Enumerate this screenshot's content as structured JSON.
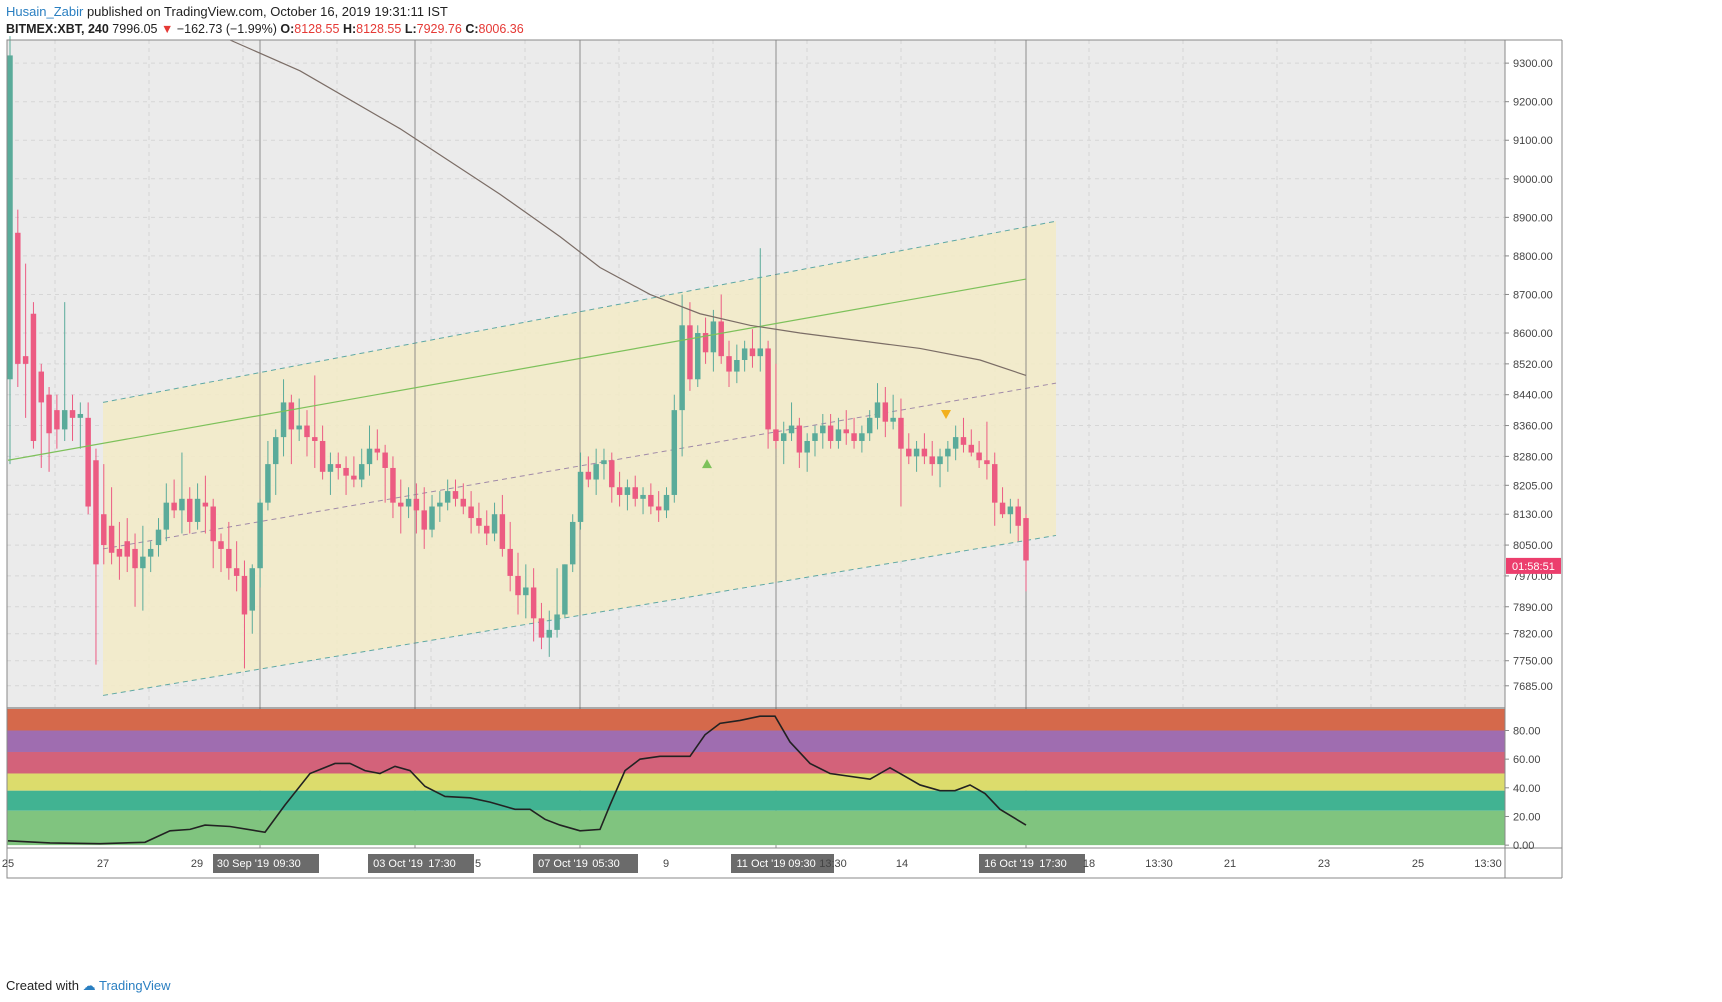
{
  "header": {
    "author": "Husain_Zabir",
    "published": "published on TradingView.com, October 16, 2019 19:31:11 IST",
    "symbol": "BITMEX:XBT, 240",
    "last": "7996.05",
    "change": "−162.73 (−1.99%)",
    "o_label": "O:",
    "o_value": "8128.55",
    "h_label": "H:",
    "h_value": "8128.55",
    "l_label": "L:",
    "l_value": "7929.76",
    "c_label": "C:",
    "c_value": "8006.36"
  },
  "footer": {
    "created_with": "Created with",
    "brand": "TradingView"
  },
  "colors": {
    "up": "#5aab9a",
    "down": "#ec5b82",
    "channel_fill": "#f3ebc7",
    "ma": "#7b6d66",
    "green_line": "#7dc15a"
  },
  "chart_data": [
    {
      "type": "candlestick",
      "title": "BITMEX:XBT, 240",
      "ylim": [
        7630,
        9360
      ],
      "y_ticks": [
        "9300.00",
        "9200.00",
        "9100.00",
        "9000.00",
        "8900.00",
        "8800.00",
        "8700.00",
        "8600.00",
        "8520.00",
        "8440.00",
        "8360.00",
        "8280.00",
        "8205.00",
        "8130.00",
        "8050.00",
        "7970.00",
        "7890.00",
        "7820.00",
        "7750.00",
        "7685.00"
      ],
      "current_price_label": "01:58:51",
      "x_ticks": [
        "25",
        "27",
        "29",
        "30 Sep '19",
        "09:30",
        "03 Oct '19",
        "17:30",
        "5",
        "07 Oct '19",
        "05:30",
        "9",
        "11 Oct '19",
        "09:30",
        "13:30",
        "14",
        "16 Oct '19",
        "17:30",
        "18",
        "13:30",
        "21",
        "23",
        "25",
        "13:30"
      ],
      "candles": [
        {
          "o": 8480,
          "h": 9370,
          "l": 8260,
          "c": 9320
        },
        {
          "o": 8860,
          "h": 8920,
          "l": 8460,
          "c": 8520
        },
        {
          "o": 8540,
          "h": 8780,
          "l": 8380,
          "c": 8520
        },
        {
          "o": 8650,
          "h": 8680,
          "l": 8300,
          "c": 8320
        },
        {
          "o": 8500,
          "h": 8520,
          "l": 8250,
          "c": 8420
        },
        {
          "o": 8440,
          "h": 8460,
          "l": 8240,
          "c": 8340
        },
        {
          "o": 8400,
          "h": 8440,
          "l": 8300,
          "c": 8350
        },
        {
          "o": 8350,
          "h": 8680,
          "l": 8320,
          "c": 8400
        },
        {
          "o": 8400,
          "h": 8440,
          "l": 8320,
          "c": 8380
        },
        {
          "o": 8380,
          "h": 8420,
          "l": 8300,
          "c": 8390
        },
        {
          "o": 8380,
          "h": 8420,
          "l": 8130,
          "c": 8150
        },
        {
          "o": 8270,
          "h": 8300,
          "l": 7740,
          "c": 8000
        },
        {
          "o": 8130,
          "h": 8260,
          "l": 8000,
          "c": 8050
        },
        {
          "o": 8100,
          "h": 8200,
          "l": 8000,
          "c": 8030
        },
        {
          "o": 8040,
          "h": 8110,
          "l": 7960,
          "c": 8020
        },
        {
          "o": 8060,
          "h": 8120,
          "l": 7980,
          "c": 8020
        },
        {
          "o": 8040,
          "h": 8080,
          "l": 7890,
          "c": 7990
        },
        {
          "o": 7990,
          "h": 8100,
          "l": 7880,
          "c": 8020
        },
        {
          "o": 8020,
          "h": 8060,
          "l": 7980,
          "c": 8040
        },
        {
          "o": 8050,
          "h": 8120,
          "l": 8020,
          "c": 8090
        },
        {
          "o": 8090,
          "h": 8210,
          "l": 8060,
          "c": 8160
        },
        {
          "o": 8160,
          "h": 8220,
          "l": 8120,
          "c": 8140
        },
        {
          "o": 8140,
          "h": 8290,
          "l": 8080,
          "c": 8170
        },
        {
          "o": 8170,
          "h": 8200,
          "l": 8080,
          "c": 8110
        },
        {
          "o": 8110,
          "h": 8210,
          "l": 8090,
          "c": 8170
        },
        {
          "o": 8160,
          "h": 8230,
          "l": 8080,
          "c": 8150
        },
        {
          "o": 8150,
          "h": 8170,
          "l": 7990,
          "c": 8060
        },
        {
          "o": 8060,
          "h": 8080,
          "l": 7980,
          "c": 8040
        },
        {
          "o": 8040,
          "h": 8110,
          "l": 7960,
          "c": 7990
        },
        {
          "o": 7990,
          "h": 8060,
          "l": 7930,
          "c": 7970
        },
        {
          "o": 7970,
          "h": 8010,
          "l": 7730,
          "c": 7870
        },
        {
          "o": 7880,
          "h": 8000,
          "l": 7820,
          "c": 7990
        },
        {
          "o": 7990,
          "h": 8170,
          "l": 7940,
          "c": 8160
        },
        {
          "o": 8160,
          "h": 8320,
          "l": 8140,
          "c": 8260
        },
        {
          "o": 8260,
          "h": 8350,
          "l": 8180,
          "c": 8330
        },
        {
          "o": 8330,
          "h": 8480,
          "l": 8280,
          "c": 8420
        },
        {
          "o": 8420,
          "h": 8440,
          "l": 8260,
          "c": 8350
        },
        {
          "o": 8350,
          "h": 8430,
          "l": 8320,
          "c": 8360
        },
        {
          "o": 8360,
          "h": 8400,
          "l": 8280,
          "c": 8330
        },
        {
          "o": 8330,
          "h": 8490,
          "l": 8250,
          "c": 8320
        },
        {
          "o": 8320,
          "h": 8360,
          "l": 8220,
          "c": 8240
        },
        {
          "o": 8240,
          "h": 8290,
          "l": 8180,
          "c": 8260
        },
        {
          "o": 8260,
          "h": 8290,
          "l": 8220,
          "c": 8250
        },
        {
          "o": 8250,
          "h": 8280,
          "l": 8180,
          "c": 8230
        },
        {
          "o": 8230,
          "h": 8280,
          "l": 8200,
          "c": 8220
        },
        {
          "o": 8220,
          "h": 8300,
          "l": 8200,
          "c": 8260
        },
        {
          "o": 8260,
          "h": 8360,
          "l": 8230,
          "c": 8300
        },
        {
          "o": 8300,
          "h": 8350,
          "l": 8270,
          "c": 8290
        },
        {
          "o": 8290,
          "h": 8310,
          "l": 8160,
          "c": 8250
        },
        {
          "o": 8250,
          "h": 8280,
          "l": 8120,
          "c": 8160
        },
        {
          "o": 8160,
          "h": 8220,
          "l": 8080,
          "c": 8150
        },
        {
          "o": 8150,
          "h": 8200,
          "l": 8120,
          "c": 8170
        },
        {
          "o": 8170,
          "h": 8210,
          "l": 8080,
          "c": 8140
        },
        {
          "o": 8140,
          "h": 8200,
          "l": 8040,
          "c": 8090
        },
        {
          "o": 8090,
          "h": 8180,
          "l": 8070,
          "c": 8150
        },
        {
          "o": 8150,
          "h": 8190,
          "l": 8110,
          "c": 8160
        },
        {
          "o": 8160,
          "h": 8220,
          "l": 8140,
          "c": 8190
        },
        {
          "o": 8190,
          "h": 8220,
          "l": 8150,
          "c": 8170
        },
        {
          "o": 8170,
          "h": 8210,
          "l": 8130,
          "c": 8150
        },
        {
          "o": 8150,
          "h": 8190,
          "l": 8080,
          "c": 8120
        },
        {
          "o": 8120,
          "h": 8160,
          "l": 8080,
          "c": 8100
        },
        {
          "o": 8100,
          "h": 8140,
          "l": 8050,
          "c": 8080
        },
        {
          "o": 8080,
          "h": 8160,
          "l": 8060,
          "c": 8130
        },
        {
          "o": 8130,
          "h": 8180,
          "l": 8020,
          "c": 8040
        },
        {
          "o": 8040,
          "h": 8110,
          "l": 7930,
          "c": 7970
        },
        {
          "o": 7970,
          "h": 8030,
          "l": 7870,
          "c": 7920
        },
        {
          "o": 7920,
          "h": 8000,
          "l": 7860,
          "c": 7940
        },
        {
          "o": 7940,
          "h": 7990,
          "l": 7800,
          "c": 7860
        },
        {
          "o": 7860,
          "h": 7900,
          "l": 7780,
          "c": 7810
        },
        {
          "o": 7810,
          "h": 7880,
          "l": 7760,
          "c": 7830
        },
        {
          "o": 7830,
          "h": 7990,
          "l": 7810,
          "c": 7870
        },
        {
          "o": 7870,
          "h": 8000,
          "l": 7860,
          "c": 8000
        },
        {
          "o": 8000,
          "h": 8130,
          "l": 7980,
          "c": 8110
        },
        {
          "o": 8110,
          "h": 8290,
          "l": 8090,
          "c": 8240
        },
        {
          "o": 8240,
          "h": 8280,
          "l": 8200,
          "c": 8220
        },
        {
          "o": 8220,
          "h": 8300,
          "l": 8180,
          "c": 8260
        },
        {
          "o": 8260,
          "h": 8300,
          "l": 8220,
          "c": 8270
        },
        {
          "o": 8270,
          "h": 8290,
          "l": 8160,
          "c": 8200
        },
        {
          "o": 8200,
          "h": 8240,
          "l": 8150,
          "c": 8180
        },
        {
          "o": 8180,
          "h": 8220,
          "l": 8140,
          "c": 8200
        },
        {
          "o": 8200,
          "h": 8230,
          "l": 8150,
          "c": 8170
        },
        {
          "o": 8170,
          "h": 8200,
          "l": 8130,
          "c": 8180
        },
        {
          "o": 8180,
          "h": 8210,
          "l": 8130,
          "c": 8150
        },
        {
          "o": 8150,
          "h": 8190,
          "l": 8110,
          "c": 8140
        },
        {
          "o": 8140,
          "h": 8200,
          "l": 8120,
          "c": 8180
        },
        {
          "o": 8180,
          "h": 8440,
          "l": 8160,
          "c": 8400
        },
        {
          "o": 8400,
          "h": 8700,
          "l": 8280,
          "c": 8620
        },
        {
          "o": 8620,
          "h": 8680,
          "l": 8450,
          "c": 8480
        },
        {
          "o": 8480,
          "h": 8620,
          "l": 8460,
          "c": 8600
        },
        {
          "o": 8600,
          "h": 8640,
          "l": 8520,
          "c": 8550
        },
        {
          "o": 8550,
          "h": 8660,
          "l": 8500,
          "c": 8630
        },
        {
          "o": 8630,
          "h": 8700,
          "l": 8520,
          "c": 8540
        },
        {
          "o": 8540,
          "h": 8580,
          "l": 8460,
          "c": 8500
        },
        {
          "o": 8500,
          "h": 8570,
          "l": 8470,
          "c": 8530
        },
        {
          "o": 8530,
          "h": 8580,
          "l": 8500,
          "c": 8560
        },
        {
          "o": 8560,
          "h": 8610,
          "l": 8510,
          "c": 8540
        },
        {
          "o": 8540,
          "h": 8820,
          "l": 8500,
          "c": 8560
        },
        {
          "o": 8560,
          "h": 8580,
          "l": 8300,
          "c": 8350
        },
        {
          "o": 8350,
          "h": 8520,
          "l": 8300,
          "c": 8320
        },
        {
          "o": 8320,
          "h": 8370,
          "l": 8260,
          "c": 8340
        },
        {
          "o": 8340,
          "h": 8420,
          "l": 8320,
          "c": 8360
        },
        {
          "o": 8360,
          "h": 8380,
          "l": 8250,
          "c": 8290
        },
        {
          "o": 8290,
          "h": 8340,
          "l": 8240,
          "c": 8320
        },
        {
          "o": 8320,
          "h": 8360,
          "l": 8280,
          "c": 8340
        },
        {
          "o": 8340,
          "h": 8390,
          "l": 8300,
          "c": 8360
        },
        {
          "o": 8360,
          "h": 8390,
          "l": 8300,
          "c": 8320
        },
        {
          "o": 8320,
          "h": 8380,
          "l": 8300,
          "c": 8350
        },
        {
          "o": 8350,
          "h": 8400,
          "l": 8310,
          "c": 8340
        },
        {
          "o": 8340,
          "h": 8380,
          "l": 8300,
          "c": 8320
        },
        {
          "o": 8320,
          "h": 8360,
          "l": 8290,
          "c": 8340
        },
        {
          "o": 8340,
          "h": 8400,
          "l": 8320,
          "c": 8380
        },
        {
          "o": 8380,
          "h": 8470,
          "l": 8350,
          "c": 8420
        },
        {
          "o": 8420,
          "h": 8460,
          "l": 8330,
          "c": 8370
        },
        {
          "o": 8370,
          "h": 8440,
          "l": 8350,
          "c": 8380
        },
        {
          "o": 8380,
          "h": 8430,
          "l": 8150,
          "c": 8300
        },
        {
          "o": 8300,
          "h": 8340,
          "l": 8260,
          "c": 8280
        },
        {
          "o": 8280,
          "h": 8320,
          "l": 8240,
          "c": 8300
        },
        {
          "o": 8300,
          "h": 8340,
          "l": 8260,
          "c": 8280
        },
        {
          "o": 8280,
          "h": 8320,
          "l": 8230,
          "c": 8260
        },
        {
          "o": 8260,
          "h": 8300,
          "l": 8200,
          "c": 8280
        },
        {
          "o": 8280,
          "h": 8320,
          "l": 8240,
          "c": 8300
        },
        {
          "o": 8300,
          "h": 8360,
          "l": 8270,
          "c": 8330
        },
        {
          "o": 8330,
          "h": 8380,
          "l": 8290,
          "c": 8310
        },
        {
          "o": 8310,
          "h": 8350,
          "l": 8280,
          "c": 8290
        },
        {
          "o": 8290,
          "h": 8320,
          "l": 8250,
          "c": 8270
        },
        {
          "o": 8270,
          "h": 8370,
          "l": 8220,
          "c": 8260
        },
        {
          "o": 8260,
          "h": 8290,
          "l": 8100,
          "c": 8160
        },
        {
          "o": 8160,
          "h": 8200,
          "l": 8120,
          "c": 8130
        },
        {
          "o": 8130,
          "h": 8170,
          "l": 8080,
          "c": 8150
        },
        {
          "o": 8150,
          "h": 8170,
          "l": 8060,
          "c": 8100
        },
        {
          "o": 8120,
          "h": 8130,
          "l": 7930,
          "c": 8010
        }
      ],
      "channel_upper": [
        [
          103,
          8420
        ],
        [
          1056,
          8890
        ]
      ],
      "channel_mid": [
        [
          103,
          8040
        ],
        [
          1056,
          8470
        ]
      ],
      "channel_lower": [
        [
          103,
          7660
        ],
        [
          1056,
          8075
        ]
      ],
      "green_line": [
        [
          8,
          8270
        ],
        [
          1026,
          8740
        ]
      ],
      "ma_line": [
        [
          230,
          9360
        ],
        [
          300,
          9280
        ],
        [
          400,
          9130
        ],
        [
          500,
          8960
        ],
        [
          560,
          8850
        ],
        [
          600,
          8770
        ],
        [
          650,
          8700
        ],
        [
          700,
          8650
        ],
        [
          750,
          8620
        ],
        [
          800,
          8600
        ],
        [
          860,
          8580
        ],
        [
          920,
          8560
        ],
        [
          980,
          8530
        ],
        [
          1026,
          8490
        ]
      ],
      "signal_up": {
        "x": 707,
        "price": 8260
      },
      "signal_down": {
        "x": 946,
        "price": 8390
      }
    },
    {
      "type": "line",
      "title": "oscillator",
      "ylim": [
        -2,
        95
      ],
      "y_ticks": [
        "80.00",
        "60.00",
        "40.00",
        "20.00",
        "0.00"
      ],
      "bands": [
        {
          "from": 80,
          "to": 95,
          "color": "#d5694b"
        },
        {
          "from": 65,
          "to": 80,
          "color": "#9f6db0"
        },
        {
          "from": 50,
          "to": 65,
          "color": "#d3627a"
        },
        {
          "from": 38,
          "to": 50,
          "color": "#dcdc6c"
        },
        {
          "from": 24,
          "to": 38,
          "color": "#41b392"
        },
        {
          "from": 0,
          "to": 24,
          "color": "#80c47f"
        }
      ],
      "points": [
        [
          8,
          3
        ],
        [
          50,
          1.5
        ],
        [
          100,
          1
        ],
        [
          145,
          2
        ],
        [
          170,
          10
        ],
        [
          190,
          11
        ],
        [
          205,
          14
        ],
        [
          230,
          13
        ],
        [
          265,
          9
        ],
        [
          285,
          28
        ],
        [
          310,
          50
        ],
        [
          335,
          57
        ],
        [
          350,
          57
        ],
        [
          365,
          52
        ],
        [
          380,
          50
        ],
        [
          395,
          55
        ],
        [
          410,
          52
        ],
        [
          425,
          41
        ],
        [
          445,
          34
        ],
        [
          470,
          33
        ],
        [
          490,
          30
        ],
        [
          515,
          25
        ],
        [
          530,
          25
        ],
        [
          545,
          18
        ],
        [
          560,
          14
        ],
        [
          580,
          10
        ],
        [
          600,
          11
        ],
        [
          610,
          28
        ],
        [
          625,
          52
        ],
        [
          640,
          60
        ],
        [
          660,
          62
        ],
        [
          690,
          62
        ],
        [
          705,
          77
        ],
        [
          720,
          85
        ],
        [
          740,
          87
        ],
        [
          760,
          90
        ],
        [
          775,
          90
        ],
        [
          790,
          72
        ],
        [
          810,
          57
        ],
        [
          830,
          50
        ],
        [
          870,
          46
        ],
        [
          890,
          54
        ],
        [
          905,
          48
        ],
        [
          920,
          42
        ],
        [
          940,
          38
        ],
        [
          955,
          38
        ],
        [
          970,
          42
        ],
        [
          985,
          36
        ],
        [
          1000,
          25
        ],
        [
          1026,
          14
        ]
      ]
    }
  ]
}
